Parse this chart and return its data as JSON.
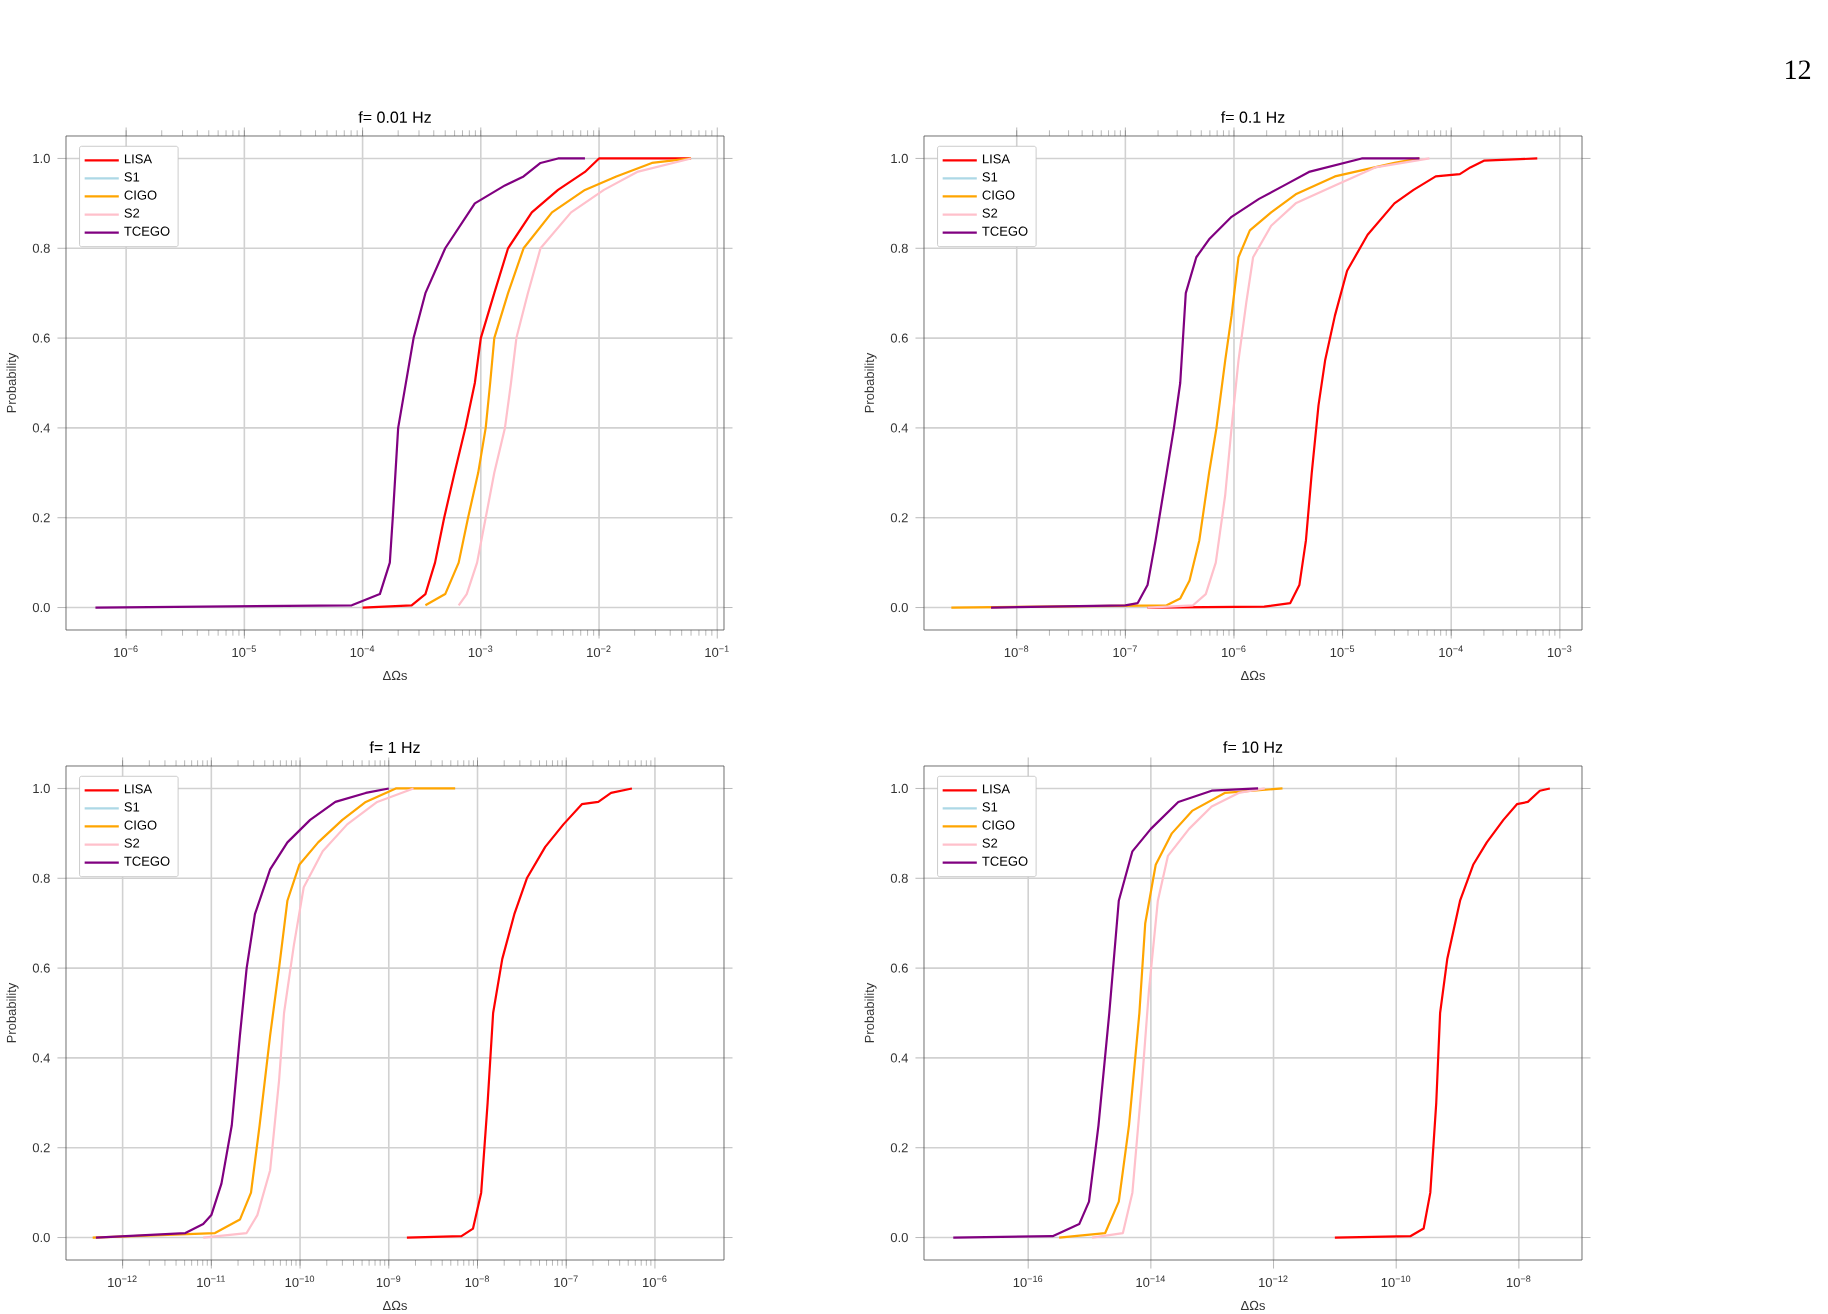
{
  "chart_data": [
    {
      "type": "line",
      "title": "f= 0.01 Hz",
      "xlabel": "ΔΩs",
      "ylabel": "Probability",
      "log": "x",
      "grid": true,
      "legend": "top left",
      "line_style": "solid",
      "annotations": [
        "12"
      ],
      "xlim": [
        3.1e-07,
        0.114
      ],
      "ylim": [
        -0.05,
        1.05
      ],
      "xticks": [
        {
          "value": 1e-06,
          "label": "10$^{−6}$"
        },
        {
          "value": 1e-05,
          "label": "10$^{−5}$"
        },
        {
          "value": 0.0001,
          "label": "10$^{−4}$"
        },
        {
          "value": 0.001,
          "label": "10$^{−3}$"
        },
        {
          "value": 0.01,
          "label": "10$^{−2}$"
        },
        {
          "value": 0.1,
          "label": "10$^{−1}$"
        }
      ],
      "yticks": [
        {
          "value": 0,
          "label": "0.0"
        },
        {
          "value": 0.2,
          "label": "0.2"
        },
        {
          "value": 0.4,
          "label": "0.4"
        },
        {
          "value": 0.6,
          "label": "0.6"
        },
        {
          "value": 0.8,
          "label": "0.8"
        },
        {
          "value": 1,
          "label": "1.0"
        }
      ],
      "series": [
        {
          "name": "LISA",
          "color": "#ff0000",
          "x": [
            0.0001,
            0.00026,
            0.00034,
            0.00041,
            0.00049,
            0.0006,
            0.00074,
            0.00089,
            0.001,
            0.0013,
            0.0017,
            0.0027,
            0.0045,
            0.0076,
            0.01,
            0.06
          ],
          "values": [
            0,
            0.005,
            0.03,
            0.1,
            0.2,
            0.3,
            0.4,
            0.5,
            0.6,
            0.7,
            0.8,
            0.88,
            0.93,
            0.97,
            1.0,
            1.0
          ]
        },
        {
          "name": "S1",
          "color": "#add8e6"
        },
        {
          "name": "CIGO",
          "color": "#ffa500",
          "x": [
            0.00034,
            0.0005,
            0.00065,
            0.00078,
            0.00095,
            0.0011,
            0.0012,
            0.0013,
            0.0017,
            0.0023,
            0.004,
            0.0076,
            0.014,
            0.028,
            0.06
          ],
          "values": [
            0.005,
            0.03,
            0.1,
            0.2,
            0.3,
            0.4,
            0.5,
            0.6,
            0.7,
            0.8,
            0.88,
            0.93,
            0.96,
            0.99,
            1.0
          ]
        },
        {
          "name": "S2",
          "color": "#ffc0cb",
          "x": [
            0.00065,
            0.00076,
            0.00093,
            0.0011,
            0.0013,
            0.0016,
            0.0018,
            0.002,
            0.0025,
            0.0032,
            0.0058,
            0.011,
            0.021,
            0.06
          ],
          "values": [
            0.005,
            0.03,
            0.1,
            0.2,
            0.3,
            0.4,
            0.5,
            0.6,
            0.7,
            0.8,
            0.88,
            0.93,
            0.97,
            1.0
          ]
        },
        {
          "name": "TCEGO",
          "color": "#800080",
          "x": [
            5.5e-07,
            8.1e-05,
            0.00014,
            0.00017,
            0.00018,
            0.0002,
            0.00027,
            0.00034,
            0.0005,
            0.00089,
            0.0016,
            0.0023,
            0.0032,
            0.0045,
            0.0076
          ],
          "values": [
            0,
            0.005,
            0.03,
            0.1,
            0.2,
            0.4,
            0.6,
            0.7,
            0.8,
            0.9,
            0.94,
            0.96,
            0.99,
            1.0,
            1.0
          ]
        }
      ]
    },
    {
      "type": "line",
      "title": "f= 0.1 Hz",
      "xlabel": "ΔΩs",
      "ylabel": "Probability",
      "log": "x",
      "grid": true,
      "legend": "top left",
      "line_style": "solid",
      "xlim": [
        1.4e-09,
        0.0016
      ],
      "ylim": [
        -0.05,
        1.05
      ],
      "xticks": [
        {
          "value": 1e-08,
          "label": "10$^{−8}$"
        },
        {
          "value": 1e-07,
          "label": "10$^{−7}$"
        },
        {
          "value": 1e-06,
          "label": "10$^{−6}$"
        },
        {
          "value": 1e-05,
          "label": "10$^{−5}$"
        },
        {
          "value": 0.0001,
          "label": "10$^{−4}$"
        },
        {
          "value": 0.001,
          "label": "10$^{−3}$"
        }
      ],
      "yticks": [
        {
          "value": 0,
          "label": "0.0"
        },
        {
          "value": 0.2,
          "label": "0.2"
        },
        {
          "value": 0.4,
          "label": "0.4"
        },
        {
          "value": 0.6,
          "label": "0.6"
        },
        {
          "value": 0.8,
          "label": "0.8"
        },
        {
          "value": 1,
          "label": "1.0"
        }
      ],
      "series": [
        {
          "name": "LISA",
          "color": "#ff0000",
          "x": [
            1.6e-07,
            1.9e-06,
            3.3e-06,
            4e-06,
            4.6e-06,
            5.2e-06,
            6e-06,
            6.9e-06,
            8.5e-06,
            1.1e-05,
            1.7e-05,
            3e-05,
            4.5e-05,
            7.2e-05,
            0.00012,
            0.00015,
            0.0002,
            0.00062
          ],
          "values": [
            0,
            0.002,
            0.01,
            0.05,
            0.15,
            0.3,
            0.45,
            0.55,
            0.65,
            0.75,
            0.83,
            0.9,
            0.93,
            0.96,
            0.965,
            0.98,
            0.995,
            1.0
          ]
        },
        {
          "name": "S1",
          "color": "#add8e6"
        },
        {
          "name": "CIGO",
          "color": "#ffa500",
          "x": [
            2.5e-09,
            2.4e-07,
            3.2e-07,
            3.9e-07,
            4.8e-07,
            5.9e-07,
            6.9e-07,
            8.3e-07,
            9.5e-07,
            1.1e-06,
            1.4e-06,
            2.2e-06,
            3.7e-06,
            8.5e-06,
            3e-05,
            5.1e-05
          ],
          "values": [
            0,
            0.005,
            0.02,
            0.06,
            0.15,
            0.3,
            0.4,
            0.55,
            0.65,
            0.78,
            0.84,
            0.88,
            0.92,
            0.96,
            0.99,
            1.0
          ]
        },
        {
          "name": "S2",
          "color": "#ffc0cb",
          "x": [
            1.6e-07,
            4.2e-07,
            5.5e-07,
            6.8e-07,
            8.3e-07,
            9.5e-07,
            1.1e-06,
            1.3e-06,
            1.5e-06,
            2.2e-06,
            3.7e-06,
            8.5e-06,
            2e-05,
            6.3e-05
          ],
          "values": [
            0,
            0.005,
            0.03,
            0.1,
            0.25,
            0.4,
            0.55,
            0.68,
            0.78,
            0.85,
            0.9,
            0.94,
            0.98,
            1.0
          ]
        },
        {
          "name": "TCEGO",
          "color": "#800080",
          "x": [
            5.8e-09,
            1e-07,
            1.3e-07,
            1.6e-07,
            1.9e-07,
            2.4e-07,
            2.8e-07,
            3.2e-07,
            3.6e-07,
            4.5e-07,
            5.9e-07,
            9.5e-07,
            1.7e-06,
            2.9e-06,
            4.9e-06,
            1.5e-05,
            5.1e-05
          ],
          "values": [
            0,
            0.005,
            0.01,
            0.05,
            0.15,
            0.3,
            0.4,
            0.5,
            0.7,
            0.78,
            0.82,
            0.87,
            0.91,
            0.94,
            0.97,
            1.0,
            1.0
          ]
        }
      ]
    },
    {
      "type": "line",
      "title": "f= 1 Hz",
      "xlabel": "ΔΩs",
      "ylabel": "Probability",
      "log": "x",
      "grid": true,
      "legend": "top left",
      "line_style": "solid",
      "xlim": [
        2.3e-13,
        6e-06
      ],
      "ylim": [
        -0.05,
        1.05
      ],
      "xticks": [
        {
          "value": 1e-12,
          "label": "10$^{−12}$"
        },
        {
          "value": 1e-11,
          "label": "10$^{−11}$"
        },
        {
          "value": 1e-10,
          "label": "10$^{−10}$"
        },
        {
          "value": 1e-09,
          "label": "10$^{−9}$"
        },
        {
          "value": 1e-08,
          "label": "10$^{−8}$"
        },
        {
          "value": 1e-07,
          "label": "10$^{−7}$"
        },
        {
          "value": 1e-06,
          "label": "10$^{−6}$"
        }
      ],
      "yticks": [
        {
          "value": 0,
          "label": "0.0"
        },
        {
          "value": 0.2,
          "label": "0.2"
        },
        {
          "value": 0.4,
          "label": "0.4"
        },
        {
          "value": 0.6,
          "label": "0.6"
        },
        {
          "value": 0.8,
          "label": "0.8"
        },
        {
          "value": 1,
          "label": "1.0"
        }
      ],
      "series": [
        {
          "name": "LISA",
          "color": "#ff0000",
          "x": [
            1.6e-09,
            6.6e-09,
            8.9e-09,
            1.1e-08,
            1.3e-08,
            1.5e-08,
            1.9e-08,
            2.6e-08,
            3.6e-08,
            5.8e-08,
            9.3e-08,
            1.5e-07,
            2.3e-07,
            3.2e-07,
            5.5e-07
          ],
          "values": [
            0,
            0.003,
            0.02,
            0.1,
            0.3,
            0.5,
            0.62,
            0.72,
            0.8,
            0.87,
            0.92,
            0.965,
            0.97,
            0.99,
            1.0
          ]
        },
        {
          "name": "S1",
          "color": "#add8e6"
        },
        {
          "name": "CIGO",
          "color": "#ffa500",
          "x": [
            4.6e-13,
            1.1e-11,
            2.1e-11,
            2.8e-11,
            3.5e-11,
            4.6e-11,
            5.8e-11,
            7.2e-11,
            9.8e-11,
            1.6e-10,
            3e-10,
            5.5e-10,
            1.2e-09,
            5.6e-09
          ],
          "values": [
            0,
            0.01,
            0.04,
            0.1,
            0.25,
            0.45,
            0.6,
            0.75,
            0.83,
            0.88,
            0.93,
            0.97,
            1.0,
            1.0
          ]
        },
        {
          "name": "S2",
          "color": "#ffc0cb",
          "x": [
            8.1e-12,
            2.5e-11,
            3.3e-11,
            4.6e-11,
            5.8e-11,
            6.6e-11,
            8.5e-11,
            1.1e-10,
            1.8e-10,
            3.4e-10,
            7.4e-10,
            1.9e-09
          ],
          "values": [
            0,
            0.01,
            0.05,
            0.15,
            0.35,
            0.5,
            0.65,
            0.78,
            0.86,
            0.92,
            0.97,
            1.0
          ]
        },
        {
          "name": "TCEGO",
          "color": "#800080",
          "x": [
            5e-13,
            5.1e-12,
            8.1e-12,
            1e-11,
            1.3e-11,
            1.7e-11,
            2.1e-11,
            2.5e-11,
            3.1e-11,
            4.6e-11,
            7.2e-11,
            1.3e-10,
            2.5e-10,
            5.5e-10,
            1e-09
          ],
          "values": [
            0,
            0.01,
            0.03,
            0.05,
            0.12,
            0.25,
            0.45,
            0.6,
            0.72,
            0.82,
            0.88,
            0.93,
            0.97,
            0.99,
            1.0
          ]
        }
      ]
    },
    {
      "type": "line",
      "title": "f= 10 Hz",
      "xlabel": "ΔΩs",
      "ylabel": "Probability",
      "log": "x",
      "grid": true,
      "legend": "top left",
      "line_style": "solid",
      "xlim": [
        2e-18,
        1.07e-07
      ],
      "ylim": [
        -0.05,
        1.05
      ],
      "xticks": [
        {
          "value": 1e-16,
          "label": "10$^{−16}$"
        },
        {
          "value": 1e-14,
          "label": "10$^{−14}$"
        },
        {
          "value": 1e-12,
          "label": "10$^{−12}$"
        },
        {
          "value": 1e-10,
          "label": "10$^{−10}$"
        },
        {
          "value": 1e-08,
          "label": "10$^{−8}$"
        }
      ],
      "yticks": [
        {
          "value": 0,
          "label": "0.0"
        },
        {
          "value": 0.2,
          "label": "0.2"
        },
        {
          "value": 0.4,
          "label": "0.4"
        },
        {
          "value": 0.6,
          "label": "0.6"
        },
        {
          "value": 0.8,
          "label": "0.8"
        },
        {
          "value": 1,
          "label": "1.0"
        }
      ],
      "series": [
        {
          "name": "LISA",
          "color": "#ff0000",
          "x": [
            1e-11,
            1.7e-10,
            2.8e-10,
            3.6e-10,
            4.5e-10,
            5.2e-10,
            6.8e-10,
            1.1e-09,
            1.8e-09,
            3e-09,
            5.6e-09,
            9.3e-09,
            1.4e-08,
            2.2e-08,
            3.2e-08
          ],
          "values": [
            0,
            0.003,
            0.02,
            0.1,
            0.3,
            0.5,
            0.62,
            0.75,
            0.83,
            0.88,
            0.93,
            0.965,
            0.97,
            0.995,
            1.0
          ]
        },
        {
          "name": "S1",
          "color": "#add8e6"
        },
        {
          "name": "CIGO",
          "color": "#ffa500",
          "x": [
            3.2e-16,
            1.8e-15,
            3e-15,
            4.4e-15,
            6.5e-15,
            8.1e-15,
            1.2e-14,
            2.2e-14,
            4.7e-14,
            1.6e-13,
            1.4e-12
          ],
          "values": [
            0,
            0.01,
            0.08,
            0.25,
            0.5,
            0.7,
            0.83,
            0.9,
            0.95,
            0.99,
            1.0
          ]
        },
        {
          "name": "S2",
          "color": "#ffc0cb",
          "x": [
            1.1e-15,
            3.5e-15,
            5e-15,
            7.2e-15,
            9.3e-15,
            1.3e-14,
            1.9e-14,
            4.2e-14,
            9.8e-14,
            2.7e-13,
            7.2e-13
          ],
          "values": [
            0,
            0.01,
            0.1,
            0.35,
            0.55,
            0.75,
            0.85,
            0.91,
            0.96,
            0.99,
            1.0
          ]
        },
        {
          "name": "TCEGO",
          "color": "#800080",
          "x": [
            6e-18,
            2.5e-16,
            6.8e-16,
            9.8e-16,
            1.4e-15,
            2.1e-15,
            3e-15,
            5e-15,
            1e-14,
            2.8e-14,
            9.8e-14,
            5.6e-13
          ],
          "values": [
            0,
            0.003,
            0.03,
            0.08,
            0.25,
            0.5,
            0.75,
            0.86,
            0.91,
            0.97,
            0.995,
            1.0
          ]
        }
      ]
    }
  ]
}
